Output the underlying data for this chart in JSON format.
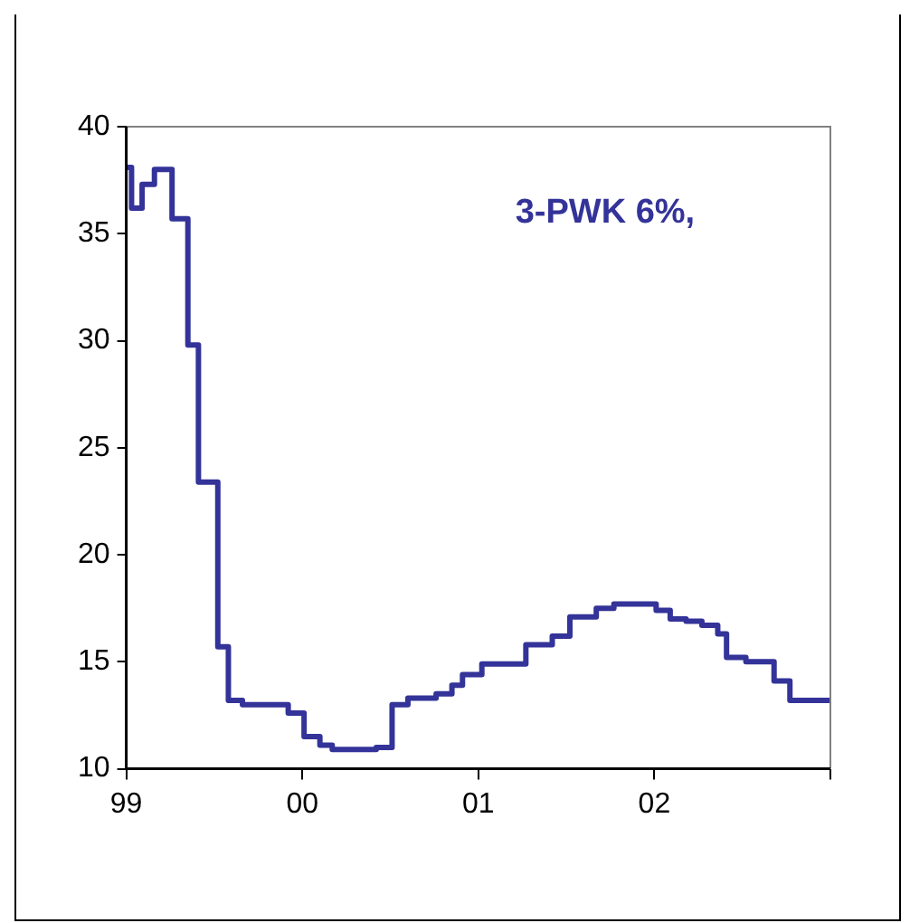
{
  "chart_data": {
    "type": "step",
    "annotations": [
      "3-PWK 6%,"
    ],
    "x": [
      1999.0,
      1999.03,
      1999.09,
      1999.16,
      1999.26,
      1999.35,
      1999.41,
      1999.52,
      1999.58,
      1999.66,
      1999.92,
      2000.01,
      2000.1,
      2000.17,
      2000.42,
      2000.51,
      2000.6,
      2000.76,
      2000.85,
      2000.91,
      2001.02,
      2001.27,
      2001.42,
      2001.52,
      2001.67,
      2001.77,
      2002.01,
      2002.09,
      2002.18,
      2002.27,
      2002.36,
      2002.41,
      2002.52,
      2002.68,
      2002.77,
      2003.0
    ],
    "series": [
      {
        "color": "#333399",
        "values": [
          38.1,
          36.2,
          37.3,
          38.0,
          35.7,
          29.8,
          23.4,
          15.7,
          13.2,
          13.0,
          12.6,
          11.5,
          11.1,
          10.9,
          11.0,
          13.0,
          13.3,
          13.5,
          13.9,
          14.4,
          14.9,
          15.8,
          16.2,
          17.1,
          17.5,
          17.7,
          17.4,
          17.0,
          16.9,
          16.7,
          16.3,
          15.2,
          15.0,
          14.1,
          13.2,
          13.2
        ]
      }
    ],
    "xlim": [
      1999,
      2003
    ],
    "xticks": [
      {
        "value": 1999,
        "label": "99"
      },
      {
        "value": 2000,
        "label": "00"
      },
      {
        "value": 2001,
        "label": "01"
      },
      {
        "value": 2002,
        "label": "02"
      },
      {
        "value": 2003,
        "label": null
      }
    ],
    "ylim": [
      10,
      40
    ],
    "yticks": [
      10,
      15,
      20,
      25,
      30,
      35,
      40
    ],
    "grid": false,
    "legend": false,
    "marker": "none",
    "line_style": "solid"
  }
}
